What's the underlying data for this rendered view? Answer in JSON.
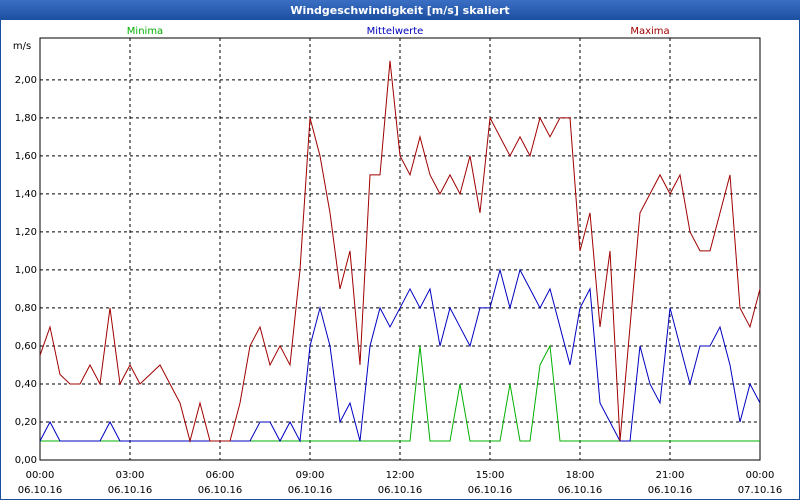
{
  "chart_data": {
    "type": "line",
    "title": "Windgeschwindigkeit [m/s] skaliert",
    "y_label": "m/s",
    "x": [
      0,
      20,
      40,
      60,
      80,
      100,
      120,
      140,
      160,
      180,
      200,
      220,
      240,
      260,
      280,
      300,
      320,
      340,
      360,
      380,
      400,
      420,
      440,
      460,
      480,
      500,
      520,
      540,
      560,
      580,
      600,
      620,
      640,
      660,
      680,
      700,
      720,
      740,
      760,
      780,
      800,
      820,
      840,
      860,
      880,
      900,
      920,
      940,
      960,
      980,
      1000,
      1020,
      1040,
      1060,
      1080,
      1100,
      1120,
      1140,
      1160,
      1180,
      1200,
      1220,
      1240,
      1260,
      1280,
      1300,
      1320,
      1340,
      1360,
      1380,
      1400,
      1420,
      1440
    ],
    "series": [
      {
        "name": "Minima",
        "color": "#00b000",
        "values": [
          0.1,
          0.1,
          0.1,
          0.1,
          0.1,
          0.1,
          0.1,
          0.1,
          0.1,
          0.1,
          0.1,
          0.1,
          0.1,
          0.1,
          0.1,
          0.1,
          0.1,
          0.1,
          0.1,
          0.1,
          0.1,
          0.1,
          0.1,
          0.1,
          0.1,
          0.1,
          0.1,
          0.1,
          0.1,
          0.1,
          0.1,
          0.1,
          0.1,
          0.1,
          0.1,
          0.1,
          0.1,
          0.1,
          0.6,
          0.1,
          0.1,
          0.1,
          0.4,
          0.1,
          0.1,
          0.1,
          0.1,
          0.4,
          0.1,
          0.1,
          0.5,
          0.6,
          0.1,
          0.1,
          0.1,
          0.1,
          0.1,
          0.1,
          0.1,
          0.1,
          0.1,
          0.1,
          0.1,
          0.1,
          0.1,
          0.1,
          0.1,
          0.1,
          0.1,
          0.1,
          0.1,
          0.1,
          0.1
        ]
      },
      {
        "name": "Mittelwerte",
        "color": "#0000c0",
        "values": [
          0.1,
          0.2,
          0.1,
          0.1,
          0.1,
          0.1,
          0.1,
          0.2,
          0.1,
          0.1,
          0.1,
          0.1,
          0.1,
          0.1,
          0.1,
          0.1,
          0.1,
          0.1,
          0.1,
          0.1,
          0.1,
          0.1,
          0.2,
          0.2,
          0.1,
          0.2,
          0.1,
          0.6,
          0.8,
          0.6,
          0.2,
          0.3,
          0.1,
          0.6,
          0.8,
          0.7,
          0.8,
          0.9,
          0.8,
          0.9,
          0.6,
          0.8,
          0.7,
          0.6,
          0.8,
          0.8,
          1.0,
          0.8,
          1.0,
          0.9,
          0.8,
          0.9,
          0.7,
          0.5,
          0.8,
          0.9,
          0.3,
          0.2,
          0.1,
          0.1,
          0.6,
          0.4,
          0.3,
          0.8,
          0.6,
          0.4,
          0.6,
          0.6,
          0.7,
          0.5,
          0.2,
          0.4,
          0.3
        ]
      },
      {
        "name": "Maxima",
        "color": "#a00000",
        "values": [
          0.55,
          0.7,
          0.45,
          0.4,
          0.4,
          0.5,
          0.4,
          0.8,
          0.4,
          0.5,
          0.4,
          0.45,
          0.5,
          0.4,
          0.3,
          0.1,
          0.3,
          0.1,
          0.1,
          0.1,
          0.3,
          0.6,
          0.7,
          0.5,
          0.6,
          0.5,
          1.0,
          1.8,
          1.6,
          1.3,
          0.9,
          1.1,
          0.5,
          1.5,
          1.5,
          2.1,
          1.6,
          1.5,
          1.7,
          1.5,
          1.4,
          1.5,
          1.4,
          1.6,
          1.3,
          1.8,
          1.7,
          1.6,
          1.7,
          1.6,
          1.8,
          1.7,
          1.8,
          1.8,
          1.1,
          1.3,
          0.7,
          1.1,
          0.1,
          0.7,
          1.3,
          1.4,
          1.5,
          1.4,
          1.5,
          1.2,
          1.1,
          1.1,
          1.3,
          1.5,
          0.8,
          0.7,
          0.9
        ]
      }
    ],
    "xlim": [
      0,
      1440
    ],
    "xticks": [
      {
        "value": 0,
        "label": "00:00"
      },
      {
        "value": 180,
        "label": "03:00"
      },
      {
        "value": 360,
        "label": "06:00"
      },
      {
        "value": 540,
        "label": "09:00"
      },
      {
        "value": 720,
        "label": "12:00"
      },
      {
        "value": 900,
        "label": "15:00"
      },
      {
        "value": 1080,
        "label": "18:00"
      },
      {
        "value": 1260,
        "label": "21:00"
      },
      {
        "value": 1440,
        "label": "00:00"
      }
    ],
    "xtick_dates": [
      "06.10.16",
      "06.10.16",
      "06.10.16",
      "06.10.16",
      "06.10.16",
      "06.10.16",
      "06.10.16",
      "06.10.16",
      "07.10.16"
    ],
    "ylim": [
      0,
      2.22
    ],
    "yticks": [
      {
        "value": 0,
        "label": "0,00"
      },
      {
        "value": 0.2,
        "label": "0,20"
      },
      {
        "value": 0.4,
        "label": "0,40"
      },
      {
        "value": 0.6,
        "label": "0,60"
      },
      {
        "value": 0.8,
        "label": "0,80"
      },
      {
        "value": 1.0,
        "label": "1,00"
      },
      {
        "value": 1.2,
        "label": "1,20"
      },
      {
        "value": 1.4,
        "label": "1,40"
      },
      {
        "value": 1.6,
        "label": "1,60"
      },
      {
        "value": 1.8,
        "label": "1,80"
      },
      {
        "value": 2.0,
        "label": "2,00"
      }
    ],
    "grid": true
  }
}
